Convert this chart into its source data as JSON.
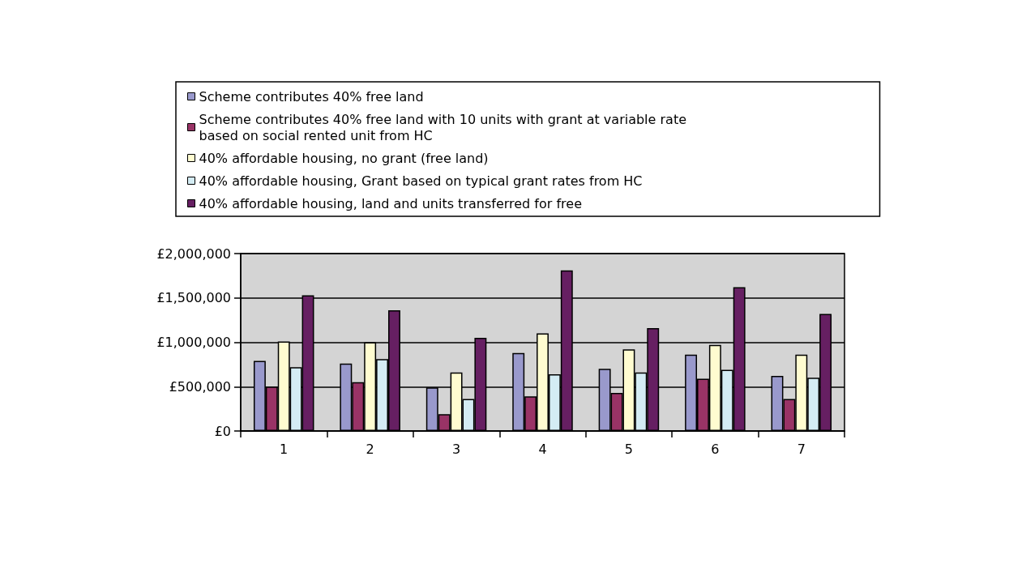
{
  "chart_data": {
    "type": "bar",
    "categories": [
      "1",
      "2",
      "3",
      "4",
      "5",
      "6",
      "7"
    ],
    "series": [
      {
        "name": "Scheme contributes 40% free land",
        "color": "#9999cc",
        "values": [
          790000,
          760000,
          490000,
          880000,
          700000,
          860000,
          620000
        ]
      },
      {
        "name": "Scheme contributes 40% free land with 10 units with grant at variable rate based on social rented unit from HC",
        "color": "#993366",
        "values": [
          500000,
          550000,
          190000,
          390000,
          430000,
          590000,
          360000
        ]
      },
      {
        "name": "40% affordable housing, no grant (free land)",
        "color": "#fffcd0",
        "values": [
          1010000,
          1000000,
          660000,
          1100000,
          920000,
          970000,
          860000
        ]
      },
      {
        "name": "40% affordable housing, Grant based on typical grant rates from HC",
        "color": "#d4ecf4",
        "values": [
          720000,
          810000,
          360000,
          640000,
          660000,
          690000,
          600000
        ]
      },
      {
        "name": "40% affordable housing, land and units transferred for free",
        "color": "#661f62",
        "values": [
          1530000,
          1360000,
          1050000,
          1810000,
          1160000,
          1620000,
          1320000
        ]
      }
    ],
    "ylim": [
      0,
      2000000
    ],
    "yticks": [
      {
        "value": 0,
        "label": "£0"
      },
      {
        "value": 500000,
        "label": "£500,000"
      },
      {
        "value": 1000000,
        "label": "£1,000,000"
      },
      {
        "value": 1500000,
        "label": "£1,500,000"
      },
      {
        "value": 2000000,
        "label": "£2,000,000"
      }
    ],
    "grid": "y",
    "legend": "top"
  }
}
